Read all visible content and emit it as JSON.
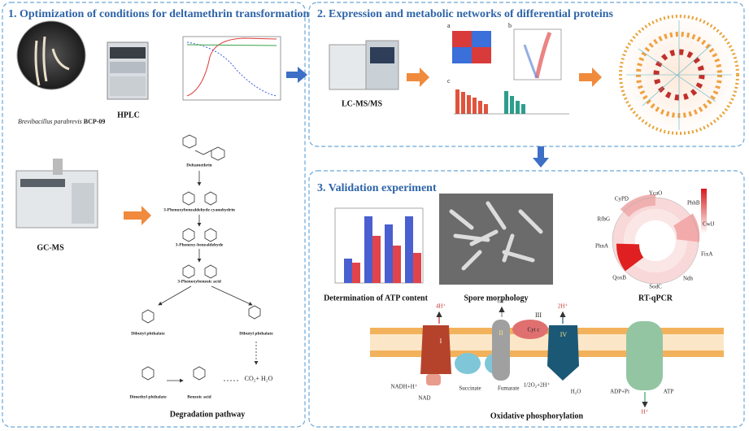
{
  "panel1": {
    "title": "1. Optimization of conditions for deltamethrin transformation",
    "strain_species": "Brevibacillus parabrevis",
    "strain_id": "BCP-09",
    "hplc": "HPLC",
    "gcms": "GC-MS",
    "compounds": [
      "Deltamethrin",
      "3-Phenoxybenzaldehyde cyanohydrin",
      "3-Phenoxy-benzaldehyde",
      "3-Phenoxybenzoic acid",
      "Dibutyl phthalate",
      "Dibutyl phthalate",
      "Dimethyl phthalate",
      "Benzoic acid",
      "CO₂+ H₂O"
    ],
    "pathway_label": "Degradation pathway"
  },
  "panel2": {
    "title": "2. Expression and metabolic networks of differential proteins",
    "instrument": "LC-MS/MS",
    "subpanels": [
      "a",
      "b",
      "c"
    ]
  },
  "panel3": {
    "title": "3. Validation experiment",
    "atp_label": "Determination of ATP content",
    "sem_label": "Spore morphology",
    "qpcr_label": "RT-qPCR",
    "genes": [
      "YcaO",
      "PhhB",
      "CwlJ",
      "FixA",
      "Ndh",
      "SodC",
      "QoxB",
      "PhnA",
      "RfbG",
      "CyPD"
    ],
    "oxphos": {
      "title": "Oxidative phosphorylation",
      "complexes": [
        "I",
        "II",
        "III",
        "IV"
      ],
      "protons": [
        "4H⁺",
        "4H⁺",
        "2H⁺",
        "H⁺"
      ],
      "cyt_c": "Cyt c",
      "nadh": "NADH+H⁺",
      "nad": "NAD",
      "succinate": "Succinate",
      "fumarate": "Fumarate",
      "oxygen": "1/2O₂+2H⁺",
      "water": "H₂O",
      "adp": "ADP+Pi",
      "atp": "ATP"
    }
  }
}
